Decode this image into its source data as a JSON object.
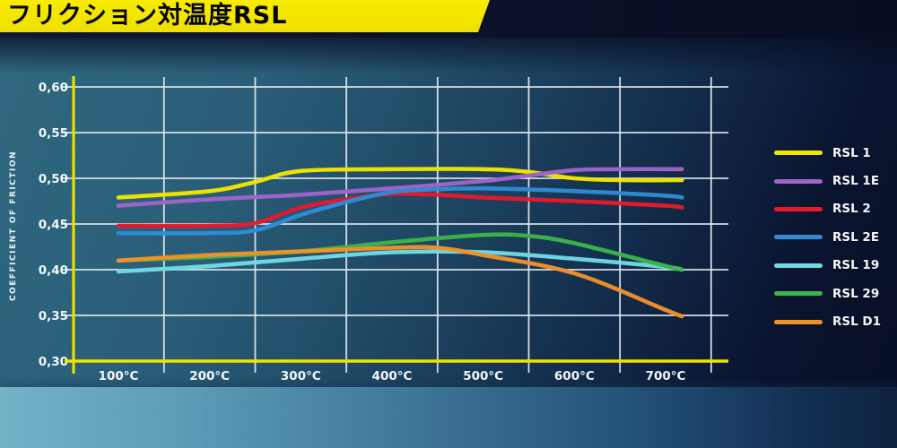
{
  "title_bar": {
    "title": "フリクション対温度RSL"
  },
  "chart_data": {
    "type": "line",
    "title": "フリクション対温度RSL",
    "xlabel": "",
    "ylabel": "COEFFICIENT OF FRICTION",
    "x_unit": "°C",
    "x_ticks": [
      100,
      200,
      300,
      400,
      500,
      600,
      700
    ],
    "x_tick_labels": [
      "100°C",
      "200°C",
      "300°C",
      "400°C",
      "500°C",
      "600°C",
      "700°C"
    ],
    "y_ticks": [
      0.3,
      0.35,
      0.4,
      0.45,
      0.5,
      0.55,
      0.6
    ],
    "y_tick_labels": [
      "0,30",
      "0,35",
      "0,40",
      "0,45",
      "0,50",
      "0,55",
      "0,60"
    ],
    "ylim": [
      0.3,
      0.6
    ],
    "xlim": [
      50,
      770
    ],
    "grid": true,
    "legend_position": "right",
    "series": [
      {
        "name": "RSL 1",
        "color": "#f2e500",
        "points": [
          [
            100,
            0.479
          ],
          [
            200,
            0.486
          ],
          [
            250,
            0.496
          ],
          [
            300,
            0.508
          ],
          [
            400,
            0.51
          ],
          [
            500,
            0.51
          ],
          [
            550,
            0.507
          ],
          [
            600,
            0.5
          ],
          [
            650,
            0.498
          ],
          [
            718,
            0.498
          ]
        ]
      },
      {
        "name": "RSL 1E",
        "color": "#a163c8",
        "points": [
          [
            100,
            0.47
          ],
          [
            200,
            0.477
          ],
          [
            300,
            0.482
          ],
          [
            400,
            0.489
          ],
          [
            500,
            0.497
          ],
          [
            550,
            0.503
          ],
          [
            600,
            0.509
          ],
          [
            650,
            0.51
          ],
          [
            718,
            0.51
          ]
        ]
      },
      {
        "name": "RSL 2",
        "color": "#e6192d",
        "points": [
          [
            100,
            0.448
          ],
          [
            200,
            0.448
          ],
          [
            250,
            0.451
          ],
          [
            300,
            0.468
          ],
          [
            350,
            0.477
          ],
          [
            400,
            0.483
          ],
          [
            450,
            0.482
          ],
          [
            500,
            0.479
          ],
          [
            600,
            0.475
          ],
          [
            700,
            0.47
          ],
          [
            718,
            0.468
          ]
        ]
      },
      {
        "name": "RSL 2E",
        "color": "#2f8bd6",
        "points": [
          [
            100,
            0.44
          ],
          [
            200,
            0.44
          ],
          [
            250,
            0.443
          ],
          [
            300,
            0.46
          ],
          [
            350,
            0.474
          ],
          [
            400,
            0.485
          ],
          [
            450,
            0.488
          ],
          [
            500,
            0.489
          ],
          [
            600,
            0.486
          ],
          [
            700,
            0.481
          ],
          [
            718,
            0.479
          ]
        ]
      },
      {
        "name": "RSL 19",
        "color": "#72d9e4",
        "points": [
          [
            100,
            0.398
          ],
          [
            200,
            0.404
          ],
          [
            300,
            0.412
          ],
          [
            400,
            0.419
          ],
          [
            500,
            0.419
          ],
          [
            600,
            0.412
          ],
          [
            700,
            0.403
          ],
          [
            718,
            0.4
          ]
        ]
      },
      {
        "name": "RSL 29",
        "color": "#3bb54a",
        "points": [
          [
            100,
            0.41
          ],
          [
            200,
            0.414
          ],
          [
            300,
            0.42
          ],
          [
            400,
            0.43
          ],
          [
            500,
            0.438
          ],
          [
            550,
            0.437
          ],
          [
            600,
            0.429
          ],
          [
            700,
            0.404
          ],
          [
            718,
            0.4
          ]
        ]
      },
      {
        "name": "RSL D1",
        "color": "#ef9227",
        "points": [
          [
            100,
            0.41
          ],
          [
            200,
            0.416
          ],
          [
            300,
            0.42
          ],
          [
            400,
            0.424
          ],
          [
            450,
            0.424
          ],
          [
            500,
            0.416
          ],
          [
            600,
            0.396
          ],
          [
            700,
            0.356
          ],
          [
            718,
            0.349
          ]
        ]
      }
    ]
  },
  "colors": {
    "axis_yellow": "#f0e400",
    "grid_white": "#e9eef4",
    "title_bar_bg": "#f5e600",
    "title_text": "#000000"
  }
}
